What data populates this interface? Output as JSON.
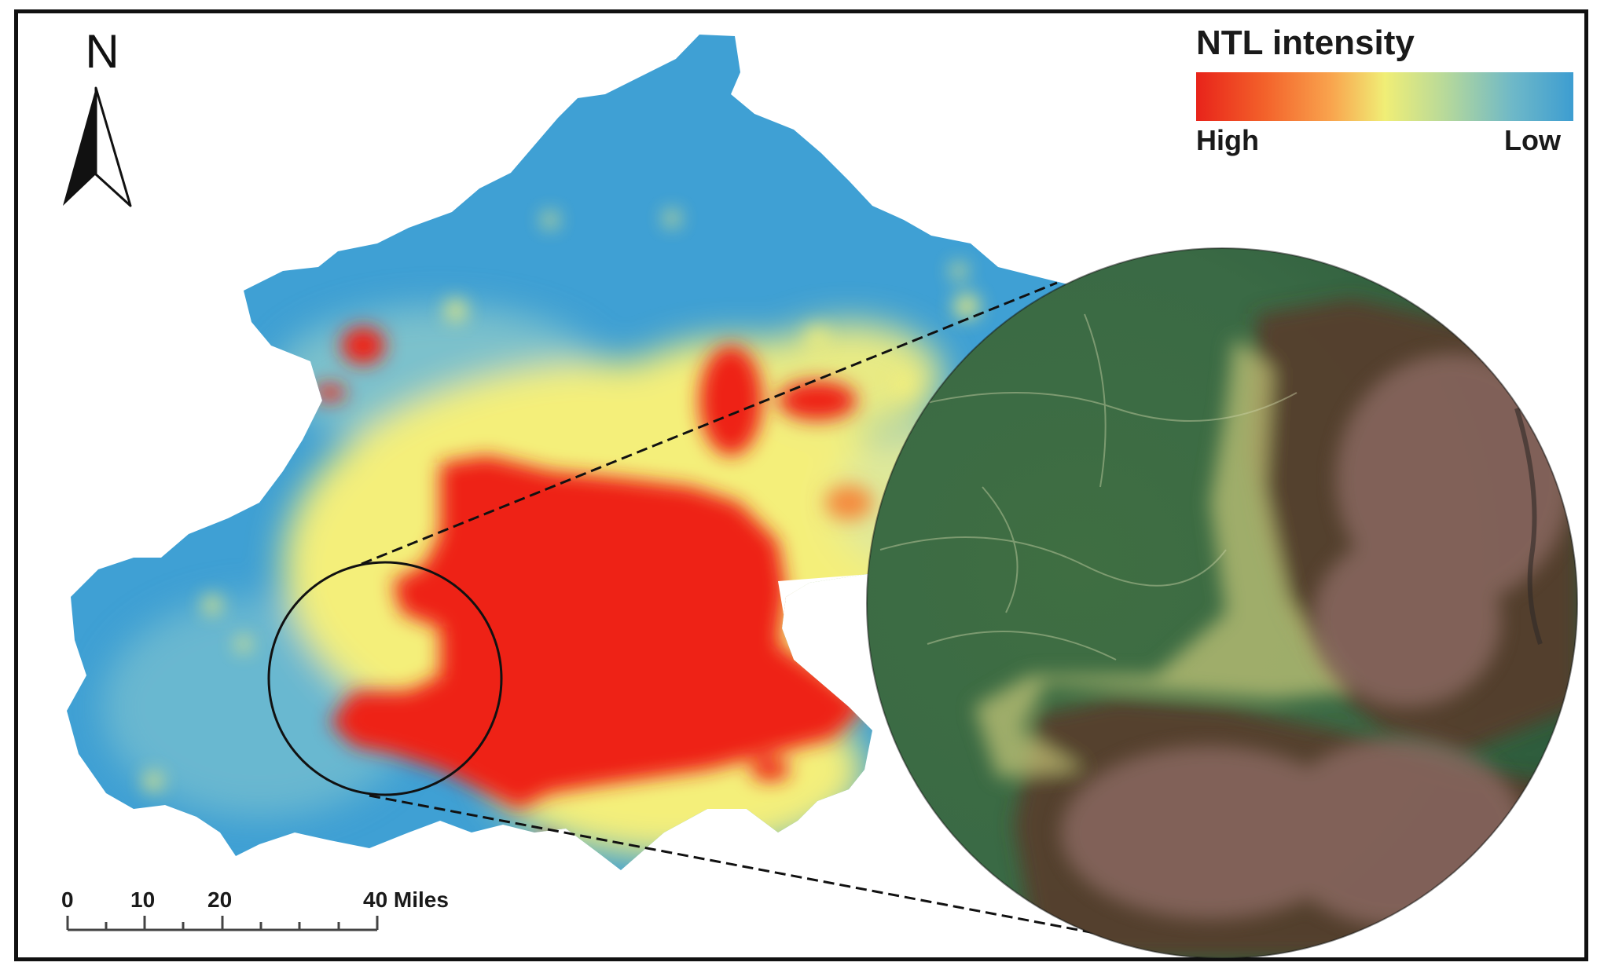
{
  "north_arrow": {
    "letter": "N",
    "icon": "north-arrow-icon"
  },
  "legend": {
    "title": "NTL intensity",
    "high_label": "High",
    "low_label": "Low",
    "gradient_colors": [
      "#e8231a",
      "#f3612a",
      "#f9a54e",
      "#f0ee76",
      "#b7d99a",
      "#6eb8c8",
      "#3d9dd1"
    ]
  },
  "scale_bar": {
    "labels": [
      "0",
      "10",
      "20",
      "40 Miles"
    ]
  },
  "colors": {
    "low_intensity": "#3fa0d4",
    "high_intensity": "#ee2218",
    "medium_intensity": "#f4ef7a",
    "frame": "#111111"
  },
  "inset": {
    "type": "satellite-zoom",
    "icon": "magnified-satellite-inset"
  }
}
